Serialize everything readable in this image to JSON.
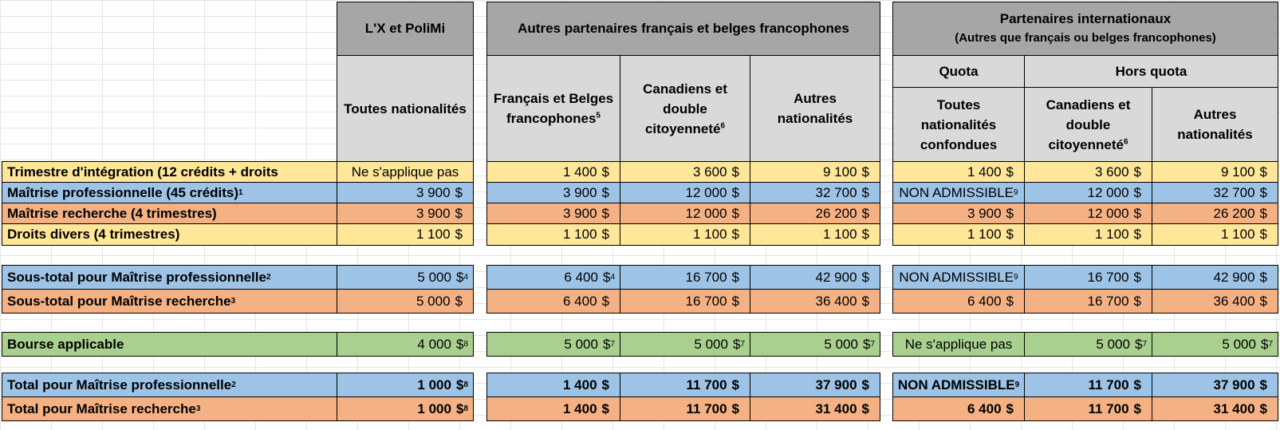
{
  "headers": {
    "group_x": "L'X et PoliMi",
    "group_fr": "Autres partenaires français et belges francophones",
    "group_intl_line1": "Partenaires internationaux",
    "group_intl_line2": "(Autres que français ou belges francophones)",
    "quota": "Quota",
    "hors_quota": "Hors quota",
    "col_x": "Toutes nationalités",
    "col_fr1_a": "Français et Belges",
    "col_fr1_b": "francophones",
    "col_fr1_sup": "5",
    "col_fr2_a": "Canadiens et",
    "col_fr2_b": "double",
    "col_fr2_c": "citoyenneté",
    "col_fr2_sup": "6",
    "col_fr3_a": "Autres",
    "col_fr3_b": "nationalités",
    "col_i1_a": "Toutes",
    "col_i1_b": "nationalités",
    "col_i1_c": "confondues",
    "col_i2_a": "Canadiens et",
    "col_i2_b": "double",
    "col_i2_c": "citoyenneté",
    "col_i2_sup": "6",
    "col_i3_a": "Autres",
    "col_i3_b": "nationalités"
  },
  "currency": "$",
  "rows": {
    "trimestre": {
      "label": "Trimestre d'intégration (12 crédits + droits",
      "x": "Ne s'applique pas",
      "fr1": "1 400",
      "fr2": "3 600",
      "fr3": "9 100",
      "i1": "1 400",
      "i2": "3 600",
      "i3": "9 100"
    },
    "maitrise_pro": {
      "label": "Maîtrise professionnelle (45 crédits)",
      "label_sup": "1",
      "x": "3 900",
      "fr1": "3 900",
      "fr2": "12 000",
      "fr3": "32 700",
      "i1": "NON ADMISSIBLE",
      "i1_sup": "9",
      "i2": "12 000",
      "i3": "32 700"
    },
    "maitrise_rech": {
      "label": "Maîtrise recherche (4 trimestres)",
      "x": "3 900",
      "fr1": "3 900",
      "fr2": "12 000",
      "fr3": "26 200",
      "i1": "3 900",
      "i2": "12 000",
      "i3": "26 200"
    },
    "droits": {
      "label": "Droits divers (4 trimestres)",
      "x": "1 100",
      "fr1": "1 100",
      "fr2": "1 100",
      "fr3": "1 100",
      "i1": "1 100",
      "i2": "1 100",
      "i3": "1 100"
    },
    "st_pro": {
      "label": "Sous-total pour Maîtrise professionnelle",
      "label_sup": "2",
      "x": "5 000",
      "x_sup": "4",
      "fr1": "6 400",
      "fr1_sup": "4",
      "fr2": "16 700",
      "fr3": "42 900",
      "i1": "NON ADMISSIBLE",
      "i1_sup": "9",
      "i2": "16 700",
      "i3": "42 900"
    },
    "st_rech": {
      "label": "Sous-total pour Maîtrise recherche",
      "label_sup": "3",
      "x": "5 000",
      "fr1": "6 400",
      "fr2": "16 700",
      "fr3": "36 400",
      "i1": "6 400",
      "i2": "16 700",
      "i3": "36 400"
    },
    "bourse": {
      "label": "Bourse applicable",
      "x": "4 000",
      "x_sup": "8",
      "fr1": "5 000",
      "fr1_sup": "7",
      "fr2": "5 000",
      "fr2_sup": "7",
      "fr3": "5 000",
      "fr3_sup": "7",
      "i1": "Ne s'applique pas",
      "i2": "5 000",
      "i2_sup": "7",
      "i3": "5 000",
      "i3_sup": "7"
    },
    "tot_pro": {
      "label": "Total pour Maîtrise professionnelle",
      "label_sup": "2",
      "x": "1 000",
      "x_sup": "8",
      "fr1": "1 400",
      "fr2": "11 700",
      "fr3": "37 900",
      "i1": "NON ADMISSIBLE",
      "i1_sup": "9",
      "i2": "11 700",
      "i3": "37 900"
    },
    "tot_rech": {
      "label": "Total pour Maîtrise recherche",
      "label_sup": "3",
      "x": "1 000",
      "x_sup": "8",
      "fr1": "1 400",
      "fr2": "11 700",
      "fr3": "31 400",
      "i1": "6 400",
      "i2": "11 700",
      "i3": "31 400"
    }
  },
  "colors": {
    "header": "#a6a6a6",
    "subheader": "#d9d9d9",
    "yellow": "#ffe699",
    "blue": "#9dc3e6",
    "orange": "#f4b183",
    "green": "#a9d08e"
  }
}
